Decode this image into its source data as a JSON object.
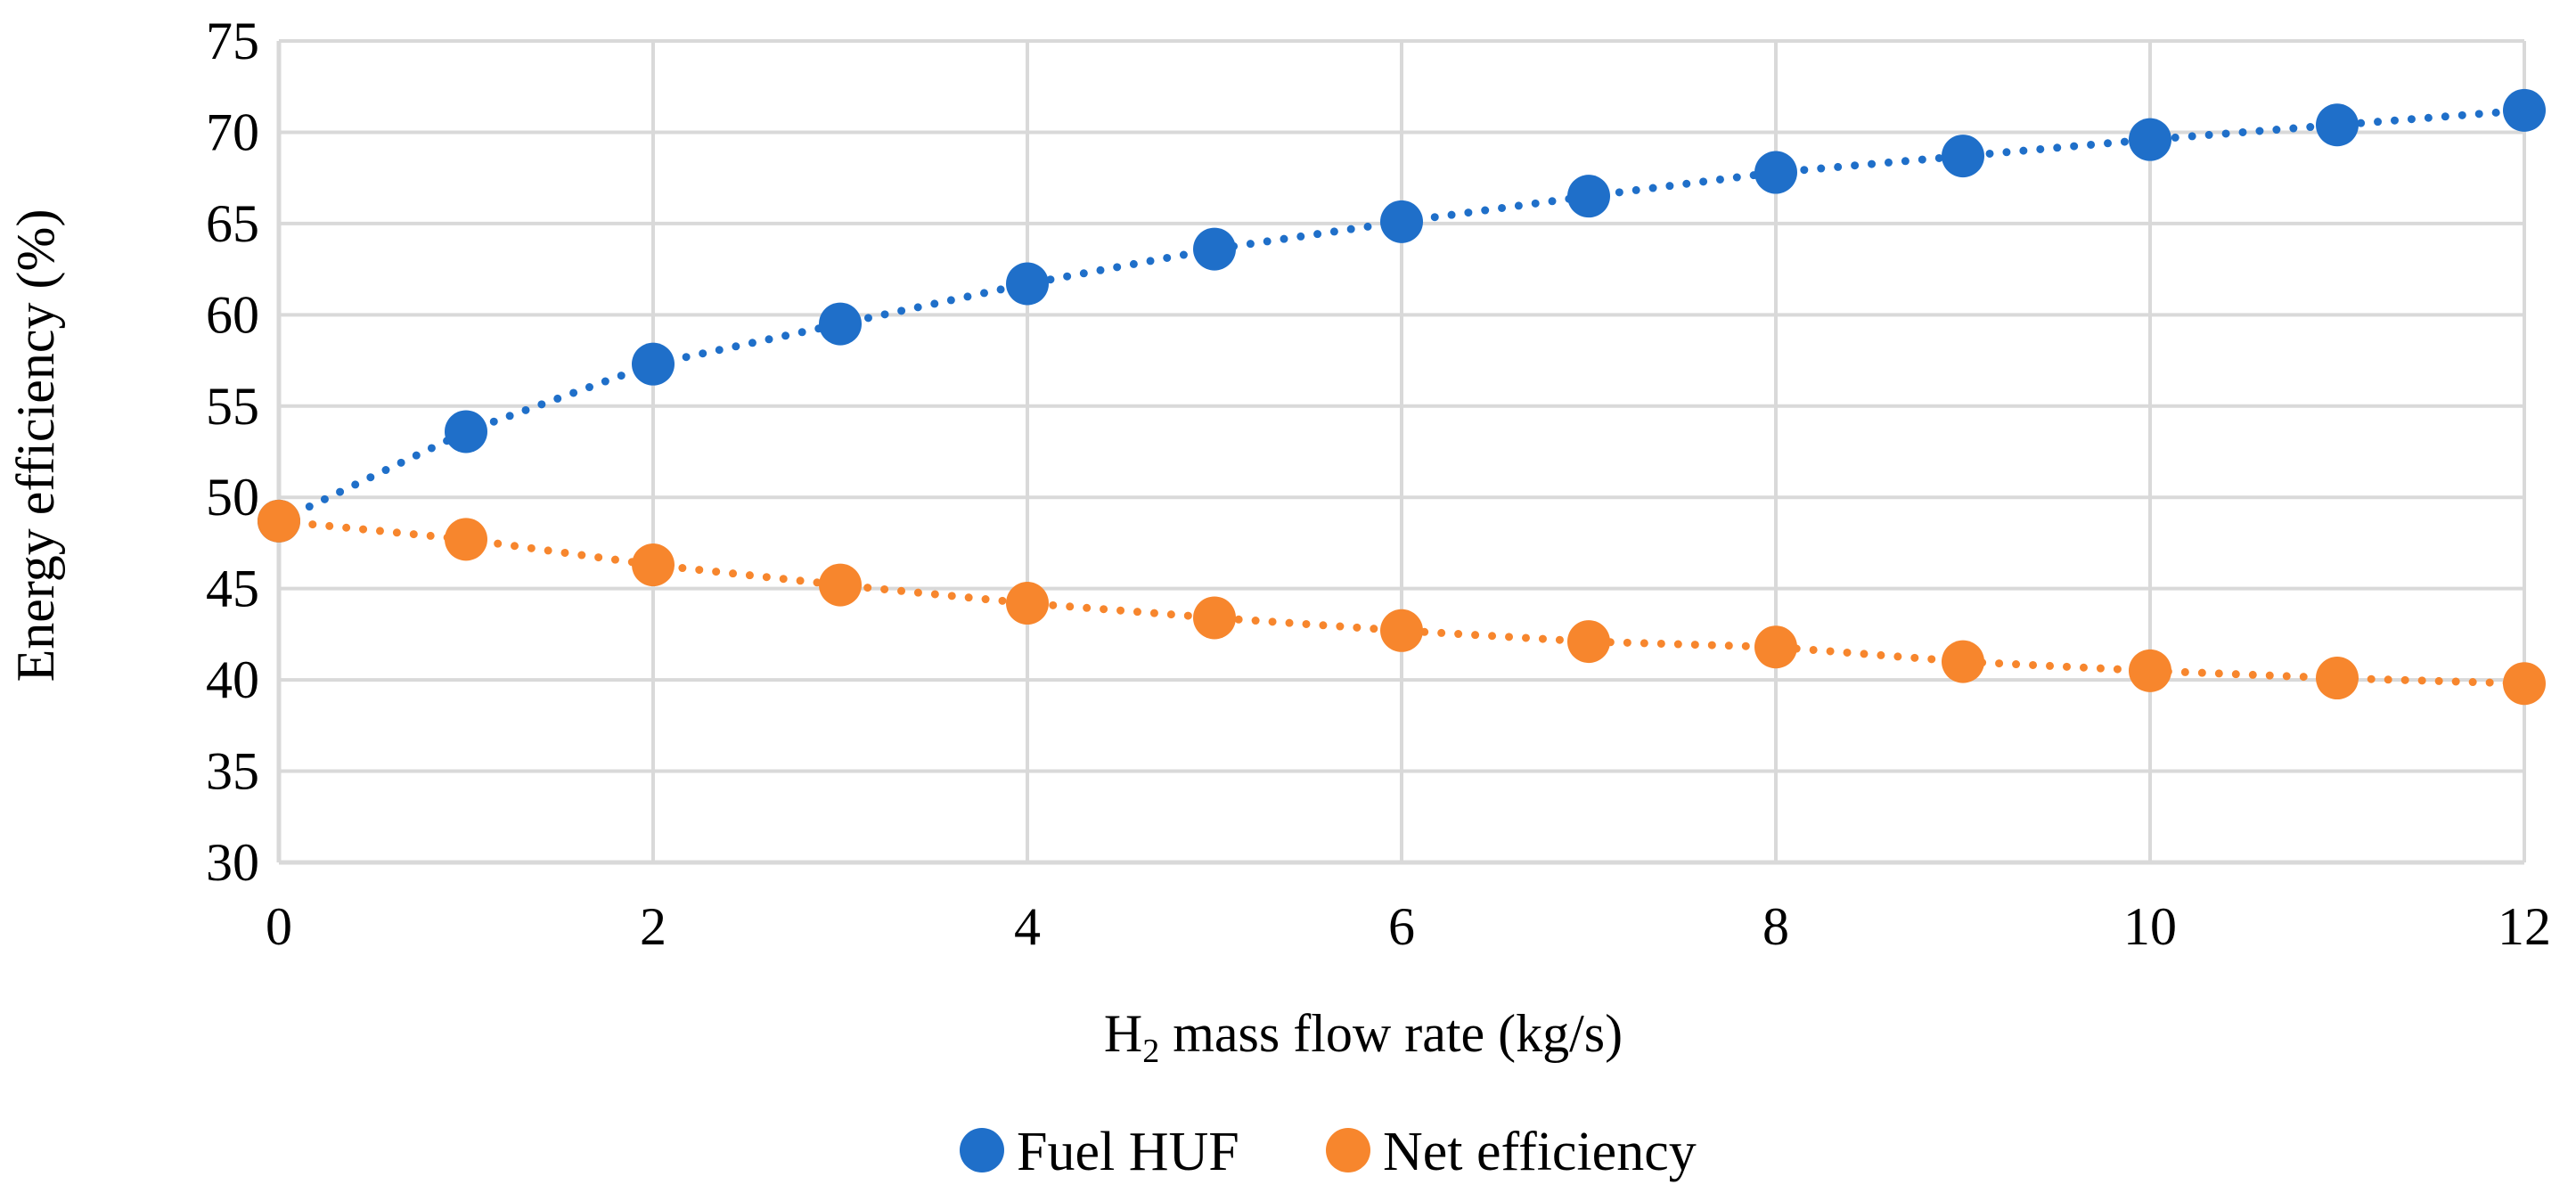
{
  "chart_data": {
    "type": "scatter",
    "title": "",
    "xlabel": {
      "prefix": "H",
      "subscript": "2",
      "suffix": " mass flow rate (kg/s)"
    },
    "ylabel": "Energy efficiency (%)",
    "xlim": [
      0,
      12
    ],
    "ylim": [
      30,
      75
    ],
    "x_ticks": [
      0,
      2,
      4,
      6,
      8,
      10,
      12
    ],
    "y_ticks": [
      30,
      35,
      40,
      45,
      50,
      55,
      60,
      65,
      70,
      75
    ],
    "grid": true,
    "legend_position": "bottom-center",
    "trendline": "dotted",
    "series": [
      {
        "name": "Fuel HUF",
        "color": "#1f6fc9",
        "x": [
          0,
          1,
          2,
          3,
          4,
          5,
          6,
          7,
          8,
          9,
          10,
          11,
          12
        ],
        "y": [
          48.7,
          53.6,
          57.3,
          59.5,
          61.7,
          63.6,
          65.1,
          66.5,
          67.8,
          68.7,
          69.6,
          70.4,
          71.2
        ]
      },
      {
        "name": "Net efficiency",
        "color": "#f7862d",
        "x": [
          0,
          1,
          2,
          3,
          4,
          5,
          6,
          7,
          8,
          9,
          10,
          11,
          12
        ],
        "y": [
          48.7,
          47.7,
          46.3,
          45.2,
          44.2,
          43.4,
          42.7,
          42.1,
          41.8,
          41.0,
          40.5,
          40.1,
          39.8
        ]
      }
    ]
  }
}
